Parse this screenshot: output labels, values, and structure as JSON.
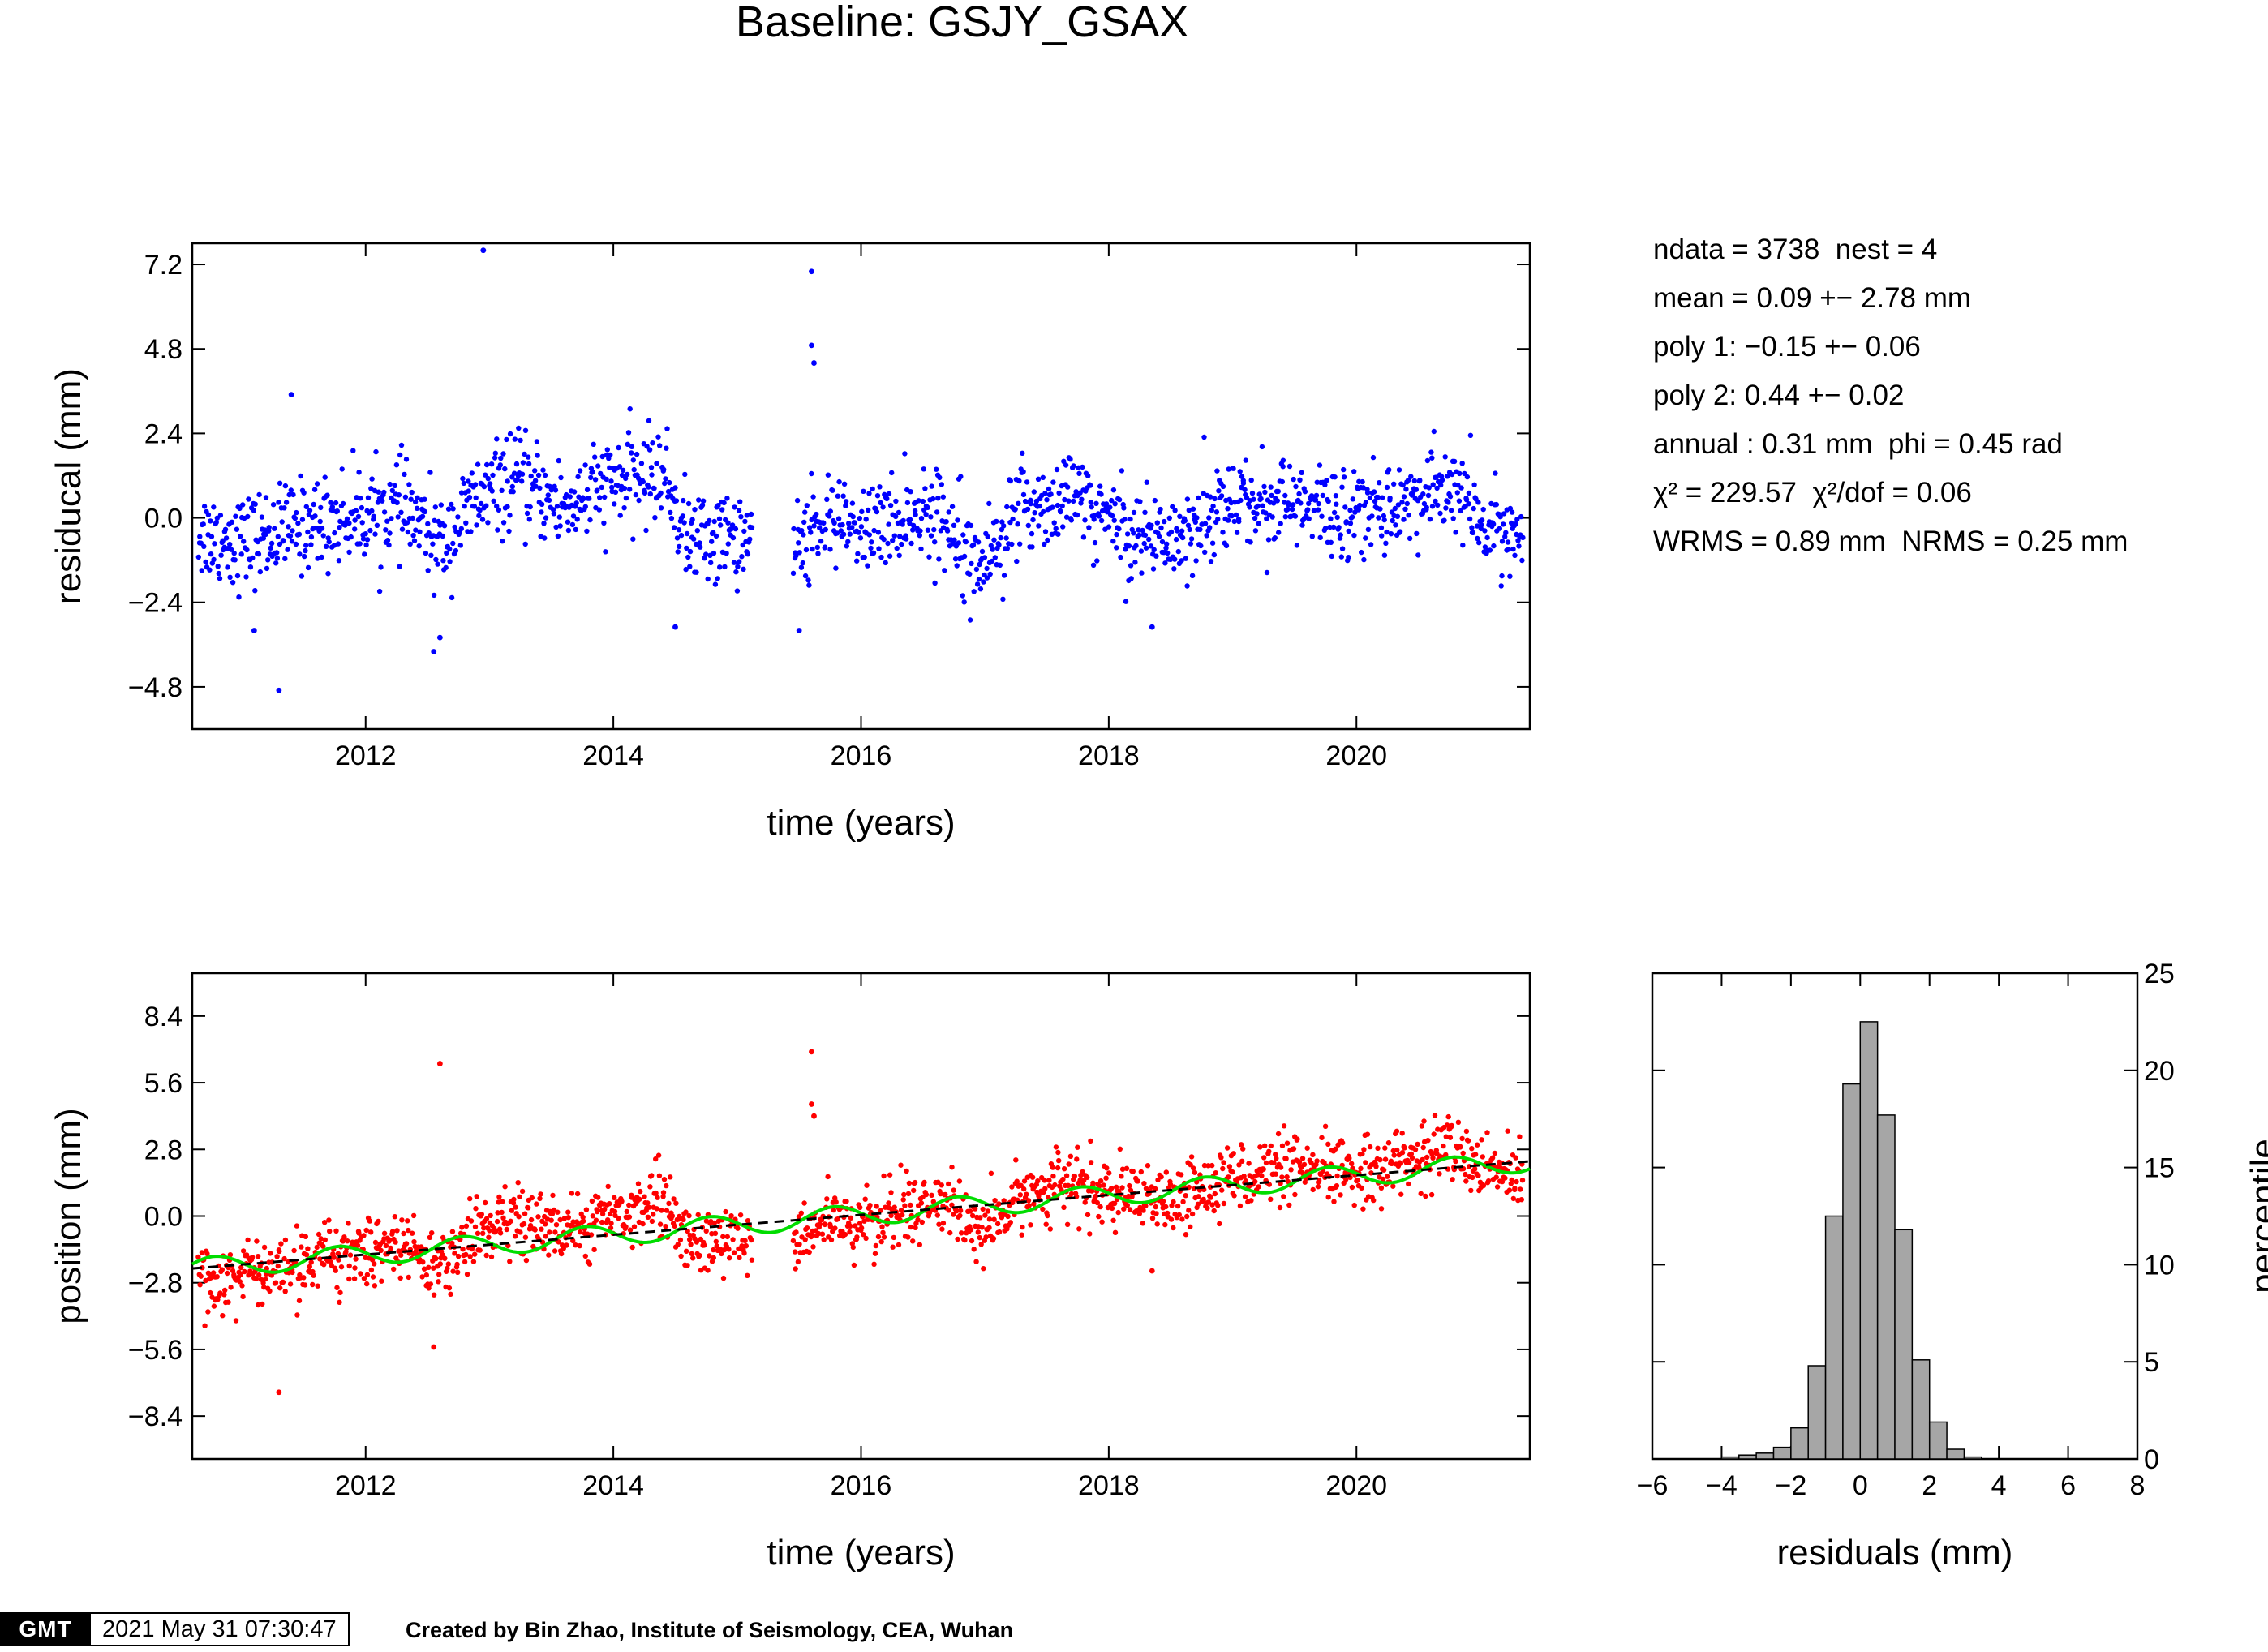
{
  "title": "Baseline: GSJY_GSAX",
  "stats": {
    "lines": [
      "ndata = 3738  nest = 4",
      "mean = 0.09 +− 2.78 mm",
      "poly 1: −0.15 +− 0.06",
      "poly 2: 0.44 +− 0.02",
      "annual : 0.31 mm  phi = 0.45 rad"
    ],
    "chi_line": "χ² = 229.57  χ²/dof = 0.06",
    "wrms_line": "WRMS = 0.89 mm  NRMS = 0.25 mm"
  },
  "footer": {
    "logo": "GMT",
    "timestamp": "2021 May 31 07:30:47",
    "credit": "Created by Bin Zhao, Institute of Seismology, CEA, Wuhan"
  },
  "chart_data": [
    {
      "type": "scatter",
      "name": "residuals",
      "xlabel": "time (years)",
      "ylabel": "residucal (mm)",
      "xlim": [
        2010.6,
        2021.4
      ],
      "ylim": [
        -6.0,
        7.8
      ],
      "xticks": [
        "2012",
        "2014",
        "2016",
        "2018",
        "2020"
      ],
      "xtick_values": [
        2012,
        2014,
        2016,
        2018,
        2020
      ],
      "yticks": [
        "−4.8",
        "−2.4",
        "0.0",
        "2.4",
        "4.8",
        "7.2"
      ],
      "ytick_values": [
        -4.8,
        -2.4,
        0.0,
        2.4,
        4.8,
        7.2
      ],
      "point_color": "#0000ff",
      "trend_knots": [
        [
          2010.6,
          -0.4
        ],
        [
          2011.0,
          -0.7
        ],
        [
          2011.5,
          -0.2
        ],
        [
          2012.0,
          0.1
        ],
        [
          2012.3,
          0.3
        ],
        [
          2012.6,
          -0.8
        ],
        [
          2012.9,
          0.5
        ],
        [
          2013.2,
          1.1
        ],
        [
          2013.6,
          0.3
        ],
        [
          2014.0,
          1.0
        ],
        [
          2014.4,
          1.3
        ],
        [
          2014.6,
          -0.6
        ],
        [
          2015.0,
          -0.5
        ],
        [
          2015.4,
          -1.0
        ],
        [
          2015.7,
          -0.1
        ],
        [
          2016.0,
          -0.4
        ],
        [
          2016.5,
          0.2
        ],
        [
          2016.8,
          -0.3
        ],
        [
          2017.0,
          -1.3
        ],
        [
          2017.3,
          0.3
        ],
        [
          2017.7,
          0.6
        ],
        [
          2018.2,
          -0.4
        ],
        [
          2018.5,
          -0.6
        ],
        [
          2018.9,
          0.3
        ],
        [
          2019.3,
          0.5
        ],
        [
          2019.7,
          0.2
        ],
        [
          2020.0,
          0.2
        ],
        [
          2020.5,
          0.5
        ],
        [
          2020.8,
          0.9
        ],
        [
          2021.0,
          -0.3
        ],
        [
          2021.4,
          -0.5
        ]
      ],
      "outliers": [
        [
          2011.3,
          -4.9
        ],
        [
          2012.55,
          -3.8
        ],
        [
          2012.6,
          -3.4
        ],
        [
          2012.95,
          7.6
        ],
        [
          2015.6,
          7.0
        ],
        [
          2015.6,
          4.9
        ],
        [
          2015.62,
          4.4
        ],
        [
          2011.4,
          3.5
        ],
        [
          2011.1,
          -3.2
        ],
        [
          2018.35,
          -3.1
        ],
        [
          2015.5,
          -3.2
        ],
        [
          2014.5,
          -3.1
        ]
      ]
    },
    {
      "type": "scatter",
      "name": "position",
      "xlabel": "time (years)",
      "ylabel": "position (mm)",
      "xlim": [
        2010.6,
        2021.4
      ],
      "ylim": [
        -10.2,
        10.2
      ],
      "xticks": [
        "2012",
        "2014",
        "2016",
        "2018",
        "2020"
      ],
      "xtick_values": [
        2012,
        2014,
        2016,
        2018,
        2020
      ],
      "yticks": [
        "−8.4",
        "−5.6",
        "−2.8",
        "0.0",
        "2.8",
        "5.6",
        "8.4"
      ],
      "ytick_values": [
        -8.4,
        -5.6,
        -2.8,
        0.0,
        2.8,
        5.6,
        8.4
      ],
      "point_color": "#ff0000",
      "trend_line": {
        "color": "#000000",
        "style": "dashed",
        "start": [
          2010.6,
          -2.2
        ],
        "end": [
          2021.4,
          2.3
        ]
      },
      "model_line": {
        "color": "#00dd00",
        "annual_amplitude": 0.31,
        "phase": 0.45
      },
      "outliers": [
        [
          2011.3,
          -7.4
        ],
        [
          2012.6,
          6.4
        ],
        [
          2012.55,
          -5.5
        ],
        [
          2015.6,
          6.9
        ],
        [
          2015.6,
          4.7
        ],
        [
          2015.62,
          4.2
        ],
        [
          2018.35,
          -2.3
        ]
      ]
    },
    {
      "type": "bar",
      "name": "histogram",
      "xlabel": "residuals (mm)",
      "ylabel": "percentile",
      "xlim": [
        -6,
        8
      ],
      "ylim": [
        0,
        25
      ],
      "xticks": [
        "−6",
        "−4",
        "−2",
        "0",
        "2",
        "4",
        "6",
        "8"
      ],
      "xtick_values": [
        -6,
        -4,
        -2,
        0,
        2,
        4,
        6,
        8
      ],
      "yticks": [
        "0",
        "5",
        "10",
        "15",
        "20",
        "25"
      ],
      "ytick_values": [
        0,
        5,
        10,
        15,
        20,
        25
      ],
      "bin_width": 0.5,
      "bins": [
        [
          -4.0,
          0.1
        ],
        [
          -3.5,
          0.2
        ],
        [
          -3.0,
          0.3
        ],
        [
          -2.5,
          0.6
        ],
        [
          -2.0,
          1.6
        ],
        [
          -1.5,
          4.8
        ],
        [
          -1.0,
          12.5
        ],
        [
          -0.5,
          19.3
        ],
        [
          0.0,
          22.5
        ],
        [
          0.5,
          17.7
        ],
        [
          1.0,
          11.8
        ],
        [
          1.5,
          5.1
        ],
        [
          2.0,
          1.9
        ],
        [
          2.5,
          0.5
        ],
        [
          3.0,
          0.1
        ]
      ],
      "bar_color": "#a6a6a6"
    }
  ]
}
